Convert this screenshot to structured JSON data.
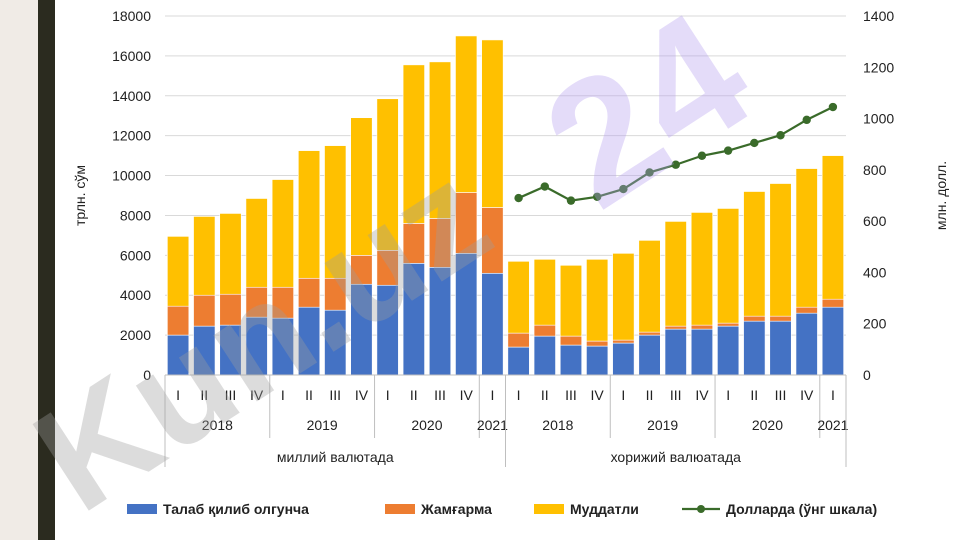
{
  "chart_data": {
    "type": "bar",
    "stacked": true,
    "ylabel": "трлн. сўм",
    "y2label": "млн. долл.",
    "ylim": [
      0,
      18000
    ],
    "y2lim": [
      0,
      1400
    ],
    "yticks": [
      0,
      2000,
      4000,
      6000,
      8000,
      10000,
      12000,
      14000,
      16000,
      18000
    ],
    "y2ticks": [
      0,
      200,
      400,
      600,
      800,
      1000,
      1200,
      1400
    ],
    "grid": true,
    "legend_position": "bottom",
    "groups": [
      {
        "label": "миллий валютада",
        "years": [
          {
            "label": "2018",
            "quarters": [
              "I",
              "II",
              "III",
              "IV"
            ]
          },
          {
            "label": "2019",
            "quarters": [
              "I",
              "II",
              "III",
              "IV"
            ]
          },
          {
            "label": "2020",
            "quarters": [
              "I",
              "II",
              "III",
              "IV"
            ]
          },
          {
            "label": "2021",
            "quarters": [
              "I"
            ]
          }
        ]
      },
      {
        "label": "хорижий валюатада",
        "years": [
          {
            "label": "2018",
            "quarters": [
              "I",
              "II",
              "III",
              "IV"
            ]
          },
          {
            "label": "2019",
            "quarters": [
              "I",
              "II",
              "III",
              "IV"
            ]
          },
          {
            "label": "2020",
            "quarters": [
              "I",
              "II",
              "III",
              "IV"
            ]
          },
          {
            "label": "2021",
            "quarters": [
              "I"
            ]
          }
        ]
      }
    ],
    "series": [
      {
        "name": "Талаб қилиб олгунча",
        "color": "#4472c4",
        "values": [
          2000,
          2450,
          2500,
          2900,
          2850,
          3400,
          3250,
          4550,
          4500,
          5600,
          5400,
          6100,
          5100,
          1400,
          1950,
          1500,
          1450,
          1600,
          2000,
          2300,
          2300,
          2450,
          2700,
          2700,
          3100,
          3400
        ]
      },
      {
        "name": "Жамғарма",
        "color": "#ed7d31",
        "values": [
          1450,
          1550,
          1550,
          1500,
          1550,
          1450,
          1600,
          1450,
          1750,
          2000,
          2450,
          3050,
          3300,
          700,
          550,
          450,
          250,
          150,
          150,
          150,
          200,
          150,
          250,
          250,
          300,
          400
        ]
      },
      {
        "name": "Муддатли",
        "color": "#ffc000",
        "values": [
          3500,
          3950,
          4050,
          4450,
          5400,
          6400,
          6650,
          6900,
          7600,
          7950,
          7850,
          7850,
          8400,
          3600,
          3300,
          3550,
          4100,
          4350,
          4600,
          5250,
          5650,
          5750,
          6250,
          6650,
          6950,
          7200
        ]
      },
      {
        "name": "Долларда (ўнг шкала)",
        "color": "#3a6b2a",
        "type": "line",
        "axis": "right",
        "values": [
          690,
          735,
          680,
          695,
          725,
          790,
          820,
          855,
          875,
          905,
          935,
          995,
          1045
        ]
      }
    ],
    "watermark": "Kun.uz 24"
  }
}
